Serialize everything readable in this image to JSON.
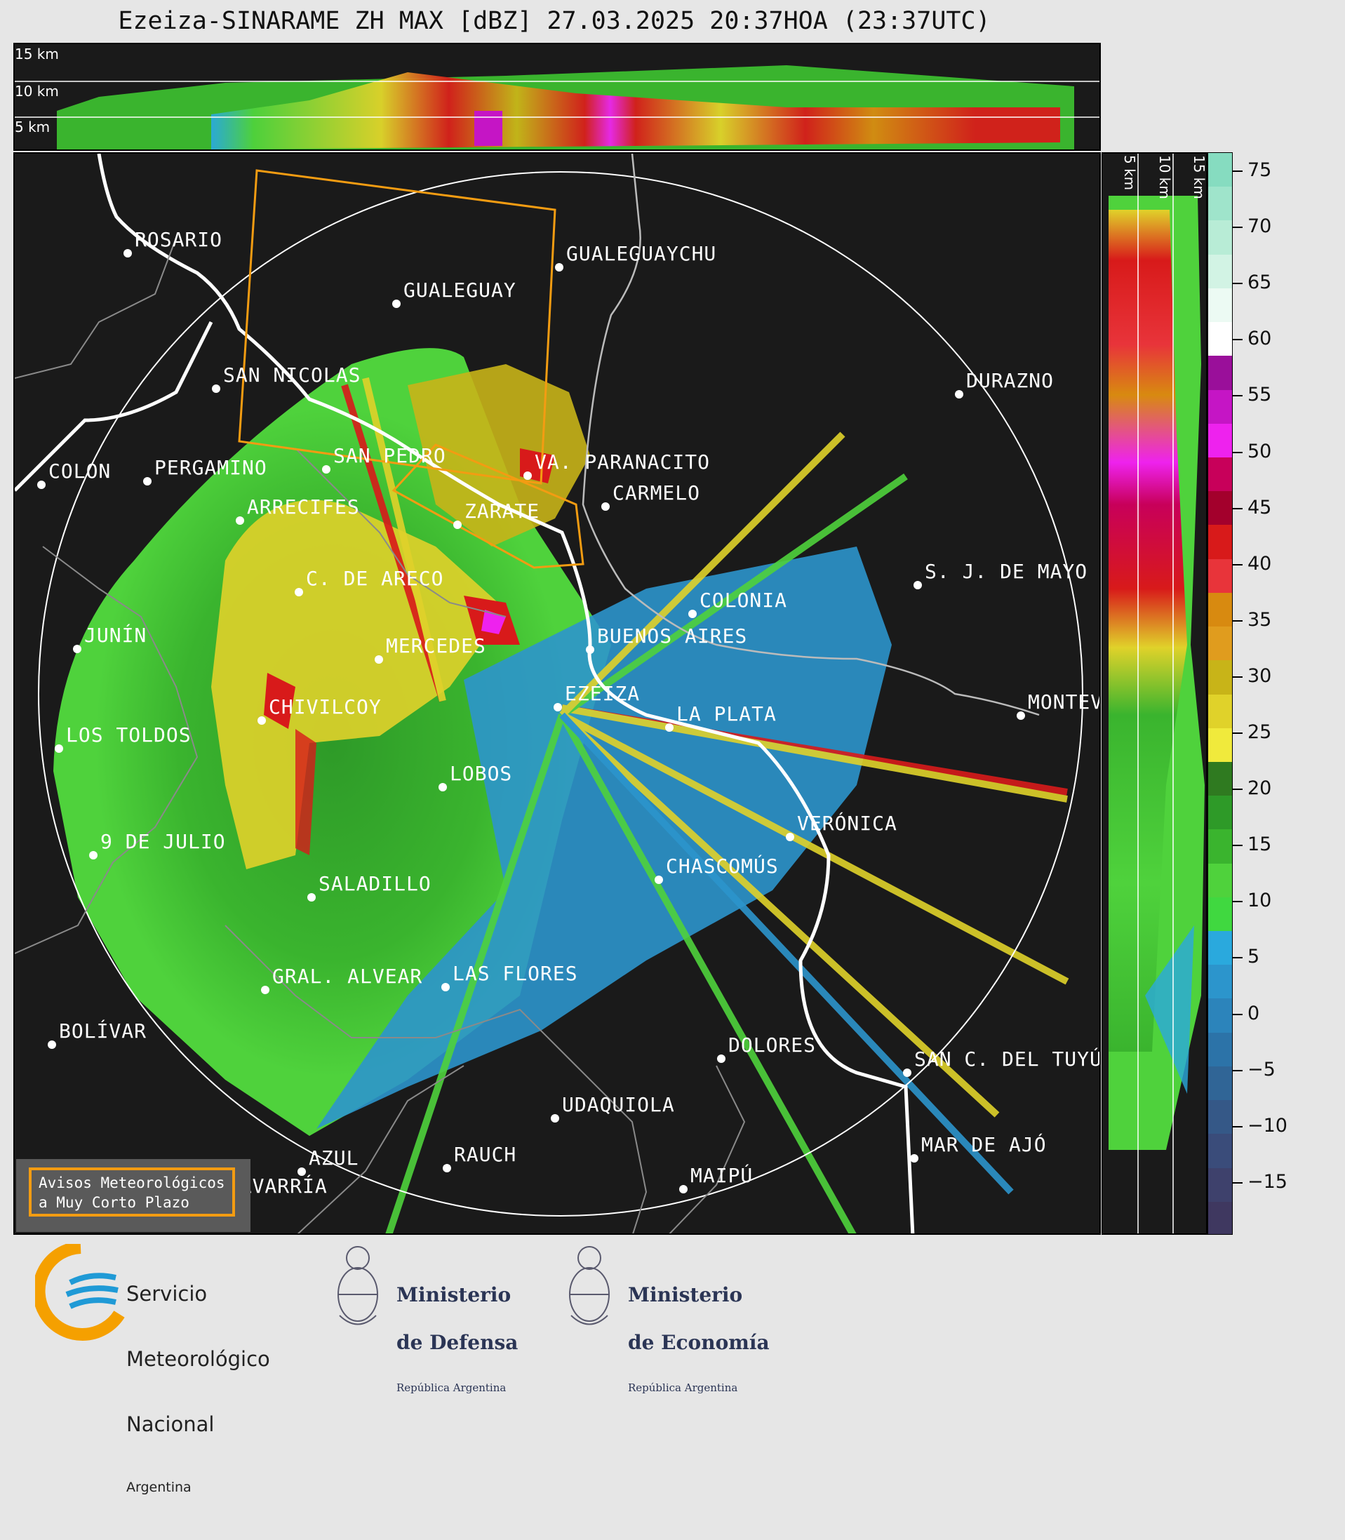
{
  "title": "Ezeiza-SINARAME ZH MAX [dBZ] 27.03.2025 20:37HOA (23:37UTC)",
  "top_panel": {
    "height_labels": [
      "15 km",
      "10 km",
      "5 km"
    ]
  },
  "side_panel": {
    "height_labels": [
      "5 km",
      "10 km",
      "15 km"
    ]
  },
  "colorbar": {
    "ticks": [
      "75",
      "70",
      "65",
      "60",
      "55",
      "50",
      "45",
      "40",
      "35",
      "30",
      "25",
      "20",
      "15",
      "10",
      "5",
      "0",
      "−5",
      "−10",
      "−15"
    ],
    "bands": [
      "#86dcc0",
      "#9fe4cb",
      "#b8ecd6",
      "#d2f3e4",
      "#ecfaf3",
      "#ffffff",
      "#9a0f9a",
      "#c515c5",
      "#ee22ee",
      "#c8005a",
      "#a3002c",
      "#d81a1a",
      "#e8343a",
      "#d88a10",
      "#e09c1e",
      "#c8b418",
      "#e0d22a",
      "#f0ea3c",
      "#2f7a20",
      "#2e9a28",
      "#3ab42e",
      "#4fd23c",
      "#40d840",
      "#2aa9dd",
      "#2c95cc",
      "#2c84bb",
      "#2c73a8",
      "#306596",
      "#355887",
      "#3a4c7a",
      "#3e416c",
      "#3f3860"
    ]
  },
  "cities": [
    {
      "name": "ROSARIO"
    },
    {
      "name": "GUALEGUAYCHU"
    },
    {
      "name": "GUALEGUAY"
    },
    {
      "name": "SAN NICOLAS"
    },
    {
      "name": "DURAZNO"
    },
    {
      "name": "SAN PEDRO"
    },
    {
      "name": "VA. PARANACITO"
    },
    {
      "name": "COLON"
    },
    {
      "name": "PERGAMINO"
    },
    {
      "name": "CARMELO"
    },
    {
      "name": "ARRECIFES"
    },
    {
      "name": "ZARATE"
    },
    {
      "name": "S. J. DE MAYO"
    },
    {
      "name": "C. DE ARECO"
    },
    {
      "name": "COLONIA"
    },
    {
      "name": "JUNÍN"
    },
    {
      "name": "BUENOS AIRES"
    },
    {
      "name": "MERCEDES"
    },
    {
      "name": "EZEIZA"
    },
    {
      "name": "MONTEVIDEO"
    },
    {
      "name": "CHIVILCOY"
    },
    {
      "name": "LA PLATA"
    },
    {
      "name": "LOS TOLDOS"
    },
    {
      "name": "LOBOS"
    },
    {
      "name": "VERÓNICA"
    },
    {
      "name": "9 DE JULIO"
    },
    {
      "name": "CHASCOMÚS"
    },
    {
      "name": "SALADILLO"
    },
    {
      "name": "GRAL. ALVEAR"
    },
    {
      "name": "LAS FLORES"
    },
    {
      "name": "BOLÍVAR"
    },
    {
      "name": "DOLORES"
    },
    {
      "name": "SAN C. DEL TUYÚ"
    },
    {
      "name": "UDAQUIOLA"
    },
    {
      "name": "AZUL"
    },
    {
      "name": "RAUCH"
    },
    {
      "name": "MAR DE AJÓ"
    },
    {
      "name": "MAIPÚ"
    },
    {
      "name": "OLAVARRÍA"
    }
  ],
  "alert_box": {
    "line1": "Avisos Meteorológicos",
    "line2": "a Muy Corto Plazo"
  },
  "logos": {
    "smn": {
      "line1": "Servicio",
      "line2": "Meteorológico",
      "line3": "Nacional",
      "line4": "Argentina"
    },
    "defensa": {
      "line1": "Ministerio",
      "line2": "de Defensa",
      "line3": "República Argentina"
    },
    "economia": {
      "line1": "Ministerio",
      "line2": "de Economía",
      "line3": "República Argentina"
    }
  },
  "colors": {
    "background": "#1a1a1a",
    "warning_polygon": "#f39c12",
    "range_ring": "#ffffff",
    "coast": "#ffffff"
  }
}
